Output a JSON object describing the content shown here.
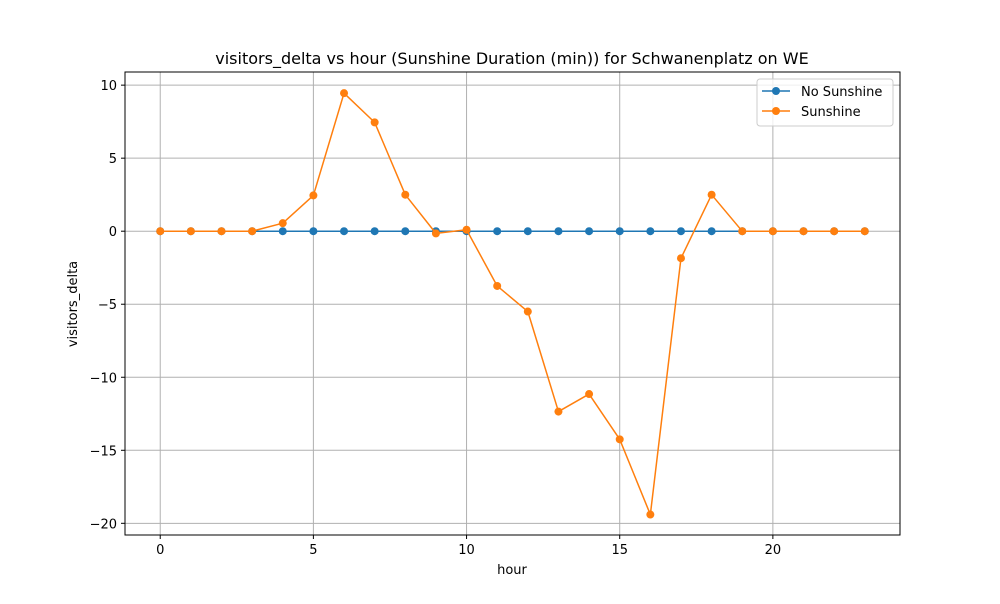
{
  "chart_data": {
    "type": "line",
    "title": "visitors_delta vs hour (Sunshine Duration (min)) for Schwanenplatz on WE",
    "xlabel": "hour",
    "ylabel": "visitors_delta",
    "xlim": [
      -1.15,
      24.15
    ],
    "ylim": [
      -20.8,
      10.9
    ],
    "x_ticks": [
      0,
      5,
      10,
      15,
      20
    ],
    "y_ticks": [
      10,
      5,
      0,
      -5,
      -10,
      -15,
      -20
    ],
    "x_tick_labels": [
      "0",
      "5",
      "10",
      "15",
      "20"
    ],
    "y_tick_labels": [
      "10",
      "5",
      "0",
      "−5",
      "−10",
      "−15",
      "−20"
    ],
    "grid": true,
    "legend_position": "upper right",
    "x": [
      0,
      1,
      2,
      3,
      4,
      5,
      6,
      7,
      8,
      9,
      10,
      11,
      12,
      13,
      14,
      15,
      16,
      17,
      18,
      19,
      20,
      21,
      22,
      23
    ],
    "series": [
      {
        "name": "No Sunshine",
        "color": "#1f77b4",
        "values": [
          0,
          0,
          0,
          0,
          0,
          0,
          0,
          0,
          0,
          0,
          0,
          0,
          0,
          0,
          0,
          0,
          0,
          0,
          0,
          0,
          0,
          0,
          0,
          0
        ]
      },
      {
        "name": "Sunshine",
        "color": "#ff7f0e",
        "values": [
          0,
          0,
          0,
          0,
          0.55,
          2.45,
          9.45,
          7.45,
          2.5,
          -0.15,
          0.1,
          -3.75,
          -5.5,
          -12.35,
          -11.15,
          -14.25,
          -19.4,
          -1.85,
          2.5,
          0,
          0,
          0,
          0,
          0
        ]
      }
    ]
  }
}
